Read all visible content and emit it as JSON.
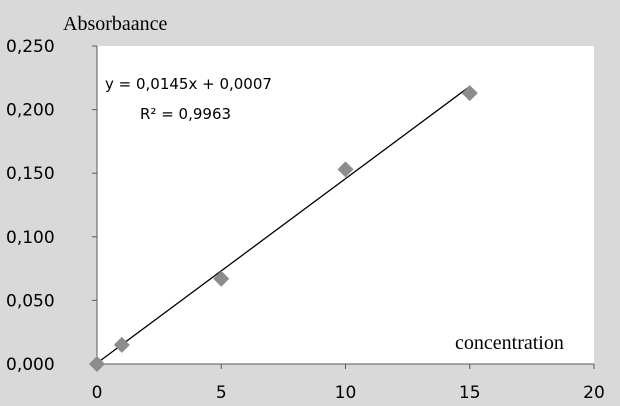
{
  "chart_data": {
    "type": "scatter",
    "ylabel": "Absorbaance",
    "xlabel": "concentration",
    "xlim": [
      0,
      20
    ],
    "ylim": [
      0,
      0.25
    ],
    "x_ticks": [
      0,
      5,
      10,
      15,
      20
    ],
    "y_ticks": [
      "0,000",
      "0,050",
      "0,100",
      "0,150",
      "0,200",
      "0,250"
    ],
    "x_tick_labels": [
      "0",
      "5",
      "10",
      "15",
      "20"
    ],
    "points": [
      {
        "x": 0,
        "y": 0.0
      },
      {
        "x": 1,
        "y": 0.015
      },
      {
        "x": 5,
        "y": 0.067
      },
      {
        "x": 10,
        "y": 0.153
      },
      {
        "x": 15,
        "y": 0.213
      }
    ],
    "trendline": {
      "slope": 0.0145,
      "intercept": 0.0007,
      "x_range": [
        0,
        15
      ]
    },
    "equation": "y = 0,0145x + 0,0007",
    "r_squared": "R² = 0,9963",
    "grid": false,
    "colors": {
      "marker": "#8c8c8c",
      "line": "#000000",
      "plot_bg": "#ffffff",
      "outer_bg": "#d9d9d9"
    }
  }
}
